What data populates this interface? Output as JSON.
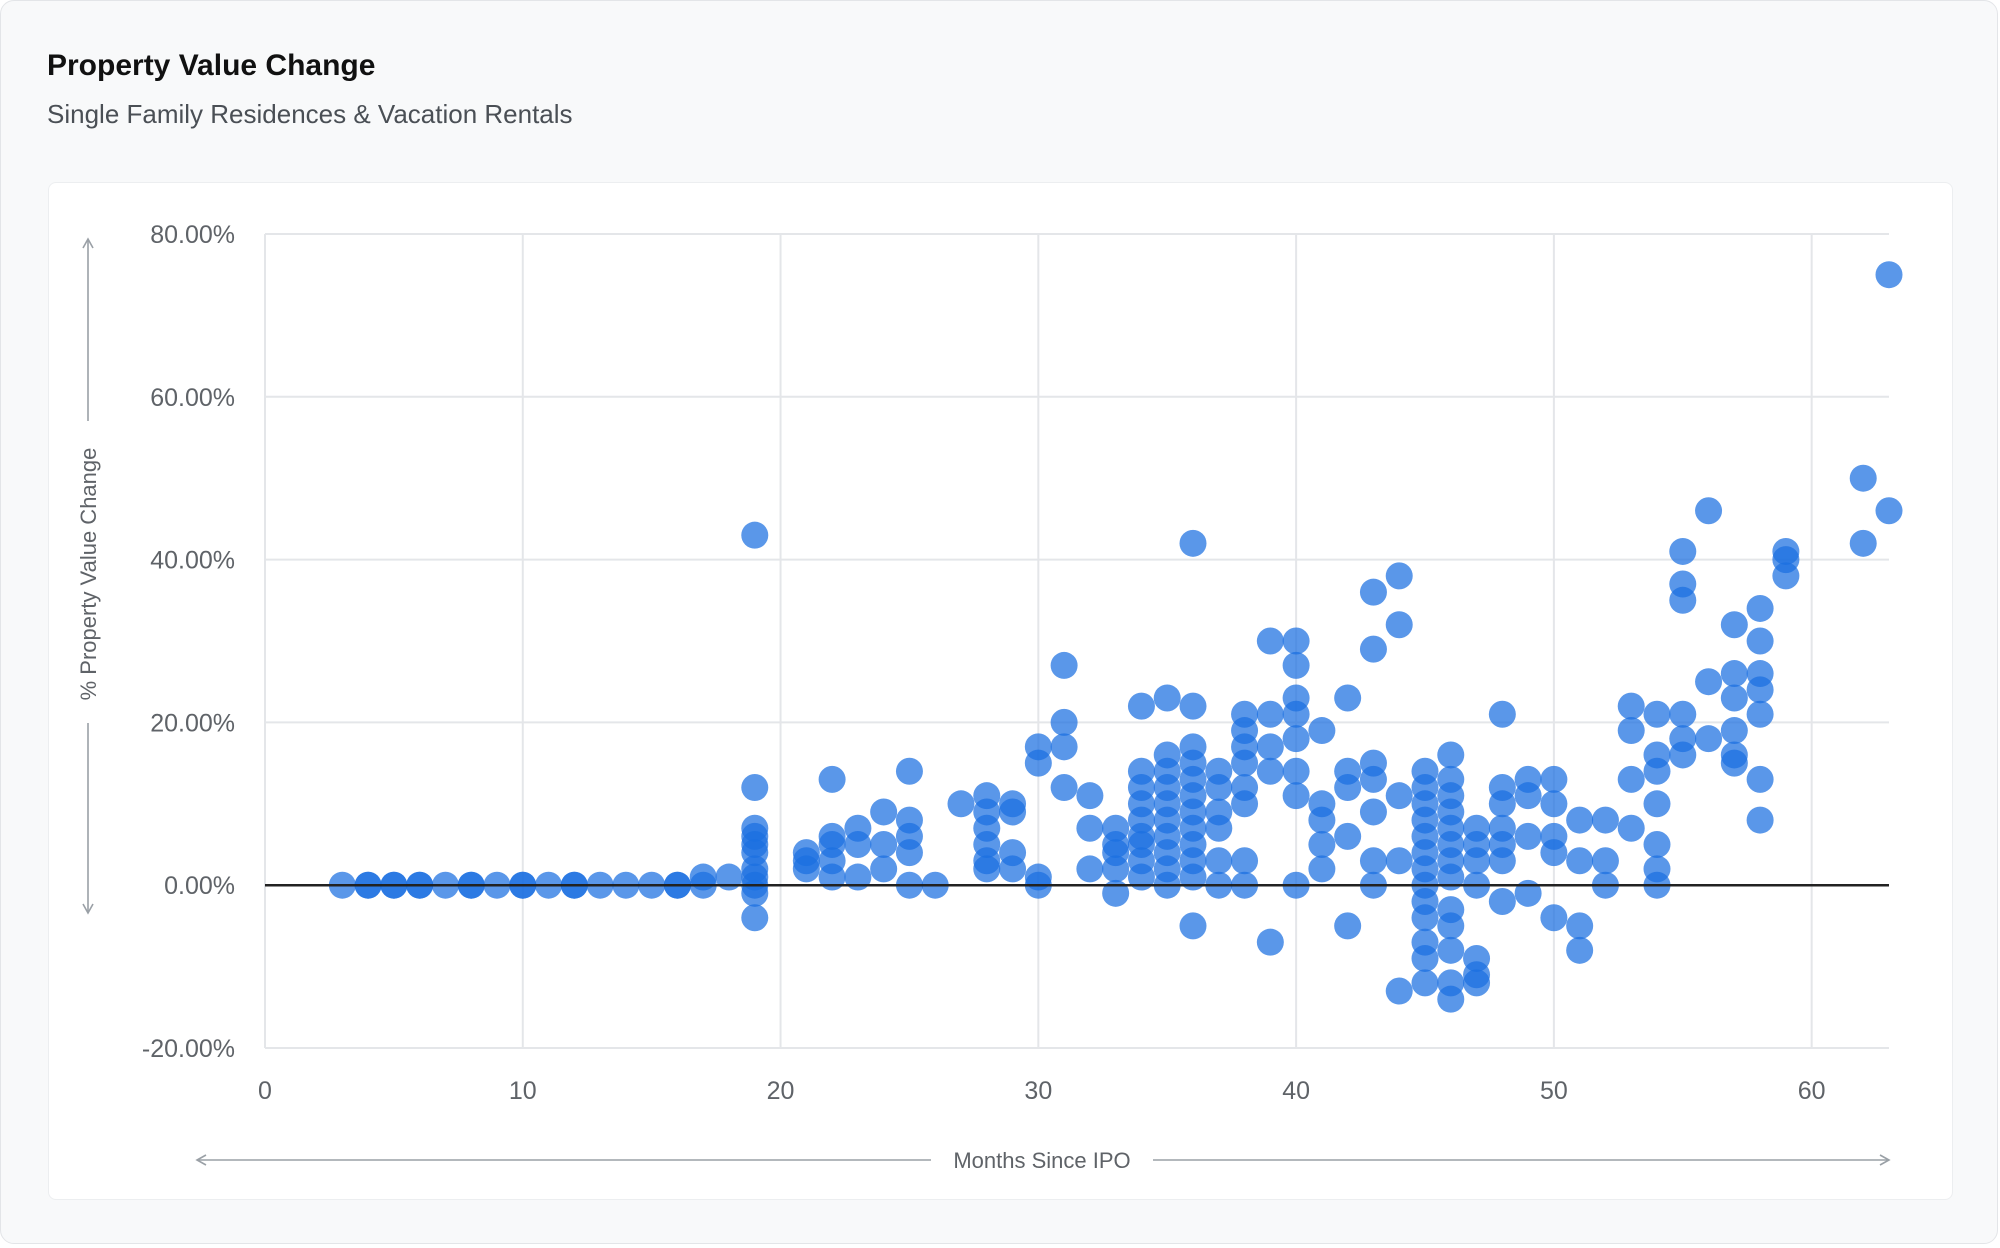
{
  "header": {
    "title": "Property Value Change",
    "subtitle": "Single Family Residences & Vacation Rentals"
  },
  "colors": {
    "point": "#1a6fe0",
    "grid": "#e4e6e9",
    "zero_line": "#222222",
    "text": "#5f6368",
    "axis_arrow": "#9aa0a6"
  },
  "chart_data": {
    "type": "scatter",
    "xlabel": "Months Since IPO",
    "ylabel": "% Property Value Change",
    "xlim": [
      0,
      63
    ],
    "ylim": [
      -20,
      80
    ],
    "x_ticks": [
      0,
      10,
      20,
      30,
      40,
      50,
      60
    ],
    "y_ticks": [
      -20,
      0,
      20,
      40,
      60,
      80
    ],
    "y_tick_labels": [
      "-20.00%",
      "0.00%",
      "20.00%",
      "40.00%",
      "60.00%",
      "80.00%"
    ],
    "grid": true,
    "legend": "none",
    "points": [
      [
        3,
        0
      ],
      [
        4,
        0
      ],
      [
        4,
        0
      ],
      [
        5,
        0
      ],
      [
        5,
        0
      ],
      [
        6,
        0
      ],
      [
        6,
        0
      ],
      [
        7,
        0
      ],
      [
        8,
        0
      ],
      [
        8,
        0
      ],
      [
        9,
        0
      ],
      [
        10,
        0
      ],
      [
        10,
        0
      ],
      [
        11,
        0
      ],
      [
        12,
        0
      ],
      [
        12,
        0
      ],
      [
        13,
        0
      ],
      [
        14,
        0
      ],
      [
        15,
        0
      ],
      [
        16,
        0
      ],
      [
        16,
        0
      ],
      [
        17,
        0
      ],
      [
        17,
        1
      ],
      [
        18,
        1
      ],
      [
        19,
        43
      ],
      [
        19,
        12
      ],
      [
        19,
        7
      ],
      [
        19,
        6
      ],
      [
        19,
        5
      ],
      [
        19,
        4
      ],
      [
        19,
        2
      ],
      [
        19,
        1
      ],
      [
        19,
        0
      ],
      [
        19,
        -1
      ],
      [
        19,
        -4
      ],
      [
        21,
        4
      ],
      [
        21,
        3
      ],
      [
        21,
        2
      ],
      [
        22,
        13
      ],
      [
        22,
        6
      ],
      [
        22,
        5
      ],
      [
        22,
        3
      ],
      [
        22,
        1
      ],
      [
        23,
        7
      ],
      [
        23,
        5
      ],
      [
        23,
        1
      ],
      [
        24,
        9
      ],
      [
        24,
        5
      ],
      [
        24,
        2
      ],
      [
        25,
        14
      ],
      [
        25,
        8
      ],
      [
        25,
        6
      ],
      [
        25,
        4
      ],
      [
        25,
        0
      ],
      [
        26,
        0
      ],
      [
        27,
        10
      ],
      [
        28,
        11
      ],
      [
        28,
        9
      ],
      [
        28,
        7
      ],
      [
        28,
        5
      ],
      [
        28,
        3
      ],
      [
        28,
        2
      ],
      [
        29,
        10
      ],
      [
        29,
        9
      ],
      [
        29,
        4
      ],
      [
        29,
        2
      ],
      [
        30,
        17
      ],
      [
        30,
        15
      ],
      [
        30,
        1
      ],
      [
        30,
        0
      ],
      [
        31,
        27
      ],
      [
        31,
        20
      ],
      [
        31,
        17
      ],
      [
        31,
        12
      ],
      [
        32,
        11
      ],
      [
        32,
        7
      ],
      [
        32,
        2
      ],
      [
        33,
        7
      ],
      [
        33,
        5
      ],
      [
        33,
        4
      ],
      [
        33,
        2
      ],
      [
        33,
        -1
      ],
      [
        34,
        22
      ],
      [
        34,
        14
      ],
      [
        34,
        12
      ],
      [
        34,
        10
      ],
      [
        34,
        8
      ],
      [
        34,
        6
      ],
      [
        34,
        5
      ],
      [
        34,
        3
      ],
      [
        34,
        1
      ],
      [
        35,
        23
      ],
      [
        35,
        16
      ],
      [
        35,
        14
      ],
      [
        35,
        12
      ],
      [
        35,
        10
      ],
      [
        35,
        8
      ],
      [
        35,
        6
      ],
      [
        35,
        4
      ],
      [
        35,
        2
      ],
      [
        35,
        0
      ],
      [
        36,
        42
      ],
      [
        36,
        22
      ],
      [
        36,
        17
      ],
      [
        36,
        15
      ],
      [
        36,
        13
      ],
      [
        36,
        11
      ],
      [
        36,
        9
      ],
      [
        36,
        7
      ],
      [
        36,
        5
      ],
      [
        36,
        3
      ],
      [
        36,
        1
      ],
      [
        36,
        -5
      ],
      [
        37,
        14
      ],
      [
        37,
        12
      ],
      [
        37,
        9
      ],
      [
        37,
        7
      ],
      [
        37,
        3
      ],
      [
        37,
        0
      ],
      [
        38,
        21
      ],
      [
        38,
        19
      ],
      [
        38,
        17
      ],
      [
        38,
        15
      ],
      [
        38,
        12
      ],
      [
        38,
        10
      ],
      [
        38,
        3
      ],
      [
        38,
        0
      ],
      [
        39,
        30
      ],
      [
        39,
        21
      ],
      [
        39,
        17
      ],
      [
        39,
        14
      ],
      [
        39,
        -7
      ],
      [
        40,
        30
      ],
      [
        40,
        27
      ],
      [
        40,
        23
      ],
      [
        40,
        21
      ],
      [
        40,
        18
      ],
      [
        40,
        14
      ],
      [
        40,
        11
      ],
      [
        40,
        0
      ],
      [
        41,
        19
      ],
      [
        41,
        10
      ],
      [
        41,
        8
      ],
      [
        41,
        5
      ],
      [
        41,
        2
      ],
      [
        42,
        23
      ],
      [
        42,
        14
      ],
      [
        42,
        12
      ],
      [
        42,
        6
      ],
      [
        42,
        -5
      ],
      [
        43,
        36
      ],
      [
        43,
        29
      ],
      [
        43,
        15
      ],
      [
        43,
        13
      ],
      [
        43,
        9
      ],
      [
        43,
        3
      ],
      [
        43,
        0
      ],
      [
        44,
        38
      ],
      [
        44,
        32
      ],
      [
        44,
        11
      ],
      [
        44,
        3
      ],
      [
        44,
        -13
      ],
      [
        45,
        14
      ],
      [
        45,
        12
      ],
      [
        45,
        10
      ],
      [
        45,
        8
      ],
      [
        45,
        6
      ],
      [
        45,
        4
      ],
      [
        45,
        2
      ],
      [
        45,
        0
      ],
      [
        45,
        -2
      ],
      [
        45,
        -4
      ],
      [
        45,
        -7
      ],
      [
        45,
        -9
      ],
      [
        45,
        -12
      ],
      [
        46,
        16
      ],
      [
        46,
        13
      ],
      [
        46,
        11
      ],
      [
        46,
        9
      ],
      [
        46,
        7
      ],
      [
        46,
        5
      ],
      [
        46,
        3
      ],
      [
        46,
        1
      ],
      [
        46,
        -3
      ],
      [
        46,
        -5
      ],
      [
        46,
        -8
      ],
      [
        46,
        -12
      ],
      [
        46,
        -14
      ],
      [
        47,
        7
      ],
      [
        47,
        5
      ],
      [
        47,
        3
      ],
      [
        47,
        0
      ],
      [
        47,
        -9
      ],
      [
        47,
        -11
      ],
      [
        47,
        -12
      ],
      [
        48,
        21
      ],
      [
        48,
        12
      ],
      [
        48,
        10
      ],
      [
        48,
        7
      ],
      [
        48,
        5
      ],
      [
        48,
        3
      ],
      [
        48,
        -2
      ],
      [
        49,
        13
      ],
      [
        49,
        11
      ],
      [
        49,
        6
      ],
      [
        49,
        -1
      ],
      [
        50,
        13
      ],
      [
        50,
        10
      ],
      [
        50,
        6
      ],
      [
        50,
        4
      ],
      [
        50,
        -4
      ],
      [
        51,
        8
      ],
      [
        51,
        3
      ],
      [
        51,
        -5
      ],
      [
        51,
        -8
      ],
      [
        52,
        8
      ],
      [
        52,
        3
      ],
      [
        52,
        0
      ],
      [
        53,
        22
      ],
      [
        53,
        19
      ],
      [
        53,
        13
      ],
      [
        53,
        7
      ],
      [
        54,
        21
      ],
      [
        54,
        16
      ],
      [
        54,
        14
      ],
      [
        54,
        10
      ],
      [
        54,
        5
      ],
      [
        54,
        2
      ],
      [
        54,
        0
      ],
      [
        55,
        41
      ],
      [
        55,
        37
      ],
      [
        55,
        35
      ],
      [
        55,
        21
      ],
      [
        55,
        18
      ],
      [
        55,
        16
      ],
      [
        56,
        46
      ],
      [
        56,
        25
      ],
      [
        56,
        18
      ],
      [
        57,
        32
      ],
      [
        57,
        26
      ],
      [
        57,
        23
      ],
      [
        57,
        19
      ],
      [
        57,
        16
      ],
      [
        57,
        15
      ],
      [
        58,
        34
      ],
      [
        58,
        30
      ],
      [
        58,
        26
      ],
      [
        58,
        24
      ],
      [
        58,
        21
      ],
      [
        58,
        13
      ],
      [
        58,
        8
      ],
      [
        59,
        41
      ],
      [
        59,
        40
      ],
      [
        59,
        38
      ],
      [
        62,
        50
      ],
      [
        62,
        42
      ],
      [
        63,
        75
      ],
      [
        63,
        46
      ]
    ]
  }
}
